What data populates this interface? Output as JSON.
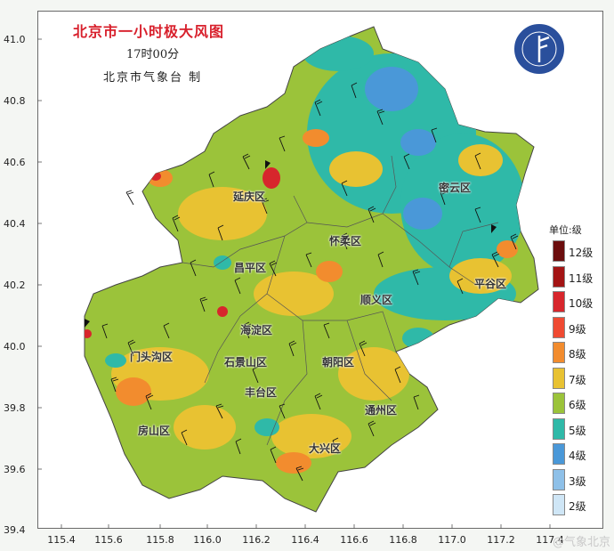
{
  "map": {
    "title": "北京市一小时极大风图",
    "time": "17时00分",
    "issuer": "北京市气象台 制",
    "y_ticks": [
      "41.0",
      "40.8",
      "40.6",
      "40.4",
      "40.2",
      "40.0",
      "39.8",
      "39.6",
      "39.4"
    ],
    "x_ticks": [
      "115.4",
      "115.6",
      "115.8",
      "116.0",
      "116.2",
      "116.4",
      "116.6",
      "116.8",
      "117.0",
      "117.2",
      "117.4"
    ],
    "legend": {
      "unit": "单位:级",
      "items": [
        {
          "label": "12级",
          "color": "#6b0d0d"
        },
        {
          "label": "11级",
          "color": "#a31414"
        },
        {
          "label": "10级",
          "color": "#d7262c"
        },
        {
          "label": "9级",
          "color": "#ef4a32"
        },
        {
          "label": "8级",
          "color": "#f28c2e"
        },
        {
          "label": "7级",
          "color": "#e8c232"
        },
        {
          "label": "6级",
          "color": "#9bc33a"
        },
        {
          "label": "5级",
          "color": "#2fb9a8"
        },
        {
          "label": "4级",
          "color": "#4a98d8"
        },
        {
          "label": "3级",
          "color": "#8ec0e8"
        },
        {
          "label": "2级",
          "color": "#cfe6f6"
        }
      ]
    },
    "districts": [
      {
        "name": "延庆区"
      },
      {
        "name": "怀柔区"
      },
      {
        "name": "密云区"
      },
      {
        "name": "昌平区"
      },
      {
        "name": "平谷区"
      },
      {
        "name": "顺义区"
      },
      {
        "name": "海淀区"
      },
      {
        "name": "门头沟区"
      },
      {
        "name": "石景山区"
      },
      {
        "name": "朝阳区"
      },
      {
        "name": "丰台区"
      },
      {
        "name": "通州区"
      },
      {
        "name": "房山区"
      },
      {
        "name": "大兴区"
      }
    ],
    "watermark": "@气象北京"
  }
}
